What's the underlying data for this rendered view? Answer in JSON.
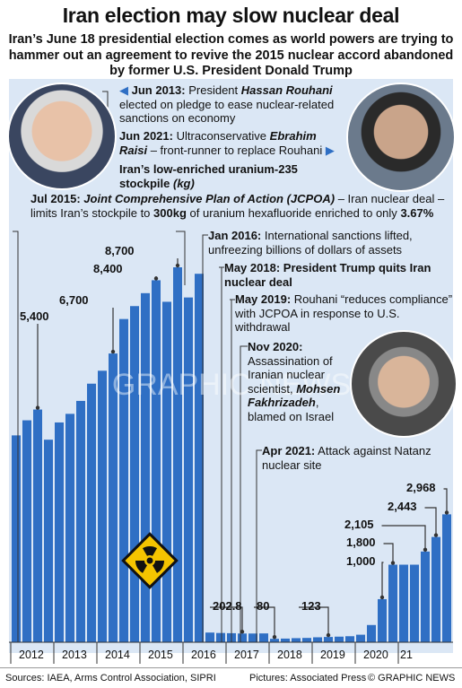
{
  "title": "Iran election may slow nuclear deal",
  "subtitle": "Iran’s June 18 presidential election comes as world powers are trying to hammer out an agreement to revive the 2015 nuclear accord abandoned by former U.S. President Donald Trump",
  "timeline": {
    "jun2013": {
      "date": "Jun 2013:",
      "pre": "President",
      "name": "Hassan Rouhani",
      "post": "elected on pledge to ease nuclear-related sanctions on economy"
    },
    "jun2021": {
      "date": "Jun 2021:",
      "pre": "Ultraconservative",
      "name": "Ebrahim Raisi",
      "post": "– front-runner to replace Rouhani"
    },
    "stockpile": {
      "label": "Iran’s low-enriched uranium-235 stockpile",
      "unit": "(kg)"
    },
    "jul2015": {
      "date": "Jul 2015:",
      "name": "Joint Comprehensive Plan of Action (JCPOA)",
      "text1": "– Iran nuclear deal – limits Iran’s stockpile to",
      "amount": "300kg",
      "text2": "of uranium hexafluoride enriched to only",
      "pct": "3.67%"
    },
    "jan2016": {
      "date": "Jan 2016:",
      "text": "International sanctions lifted, unfreezing billions of dollars of assets"
    },
    "may2018": {
      "date": "May 2018:",
      "text": "President Trump quits Iran nuclear deal"
    },
    "may2019": {
      "date": "May 2019:",
      "text": "Rouhani “reduces compliance” with JCPOA in response to U.S. withdrawal"
    },
    "nov2020": {
      "date": "Nov 2020:",
      "pre": "Assassination of Iranian nuclear scientist,",
      "name": "Mohsen Fakhrizadeh",
      "post": ", blamed on Israel"
    },
    "apr2021": {
      "date": "Apr 2021:",
      "text": "Attack against Natanz nuclear site"
    }
  },
  "photos": {
    "rouhani": "Hassan Rouhani portrait",
    "raisi": "Ebrahim Raisi portrait",
    "fakhrizadeh": "Mohsen Fakhrizadeh portrait"
  },
  "hazard_icon": "radiation-warning-icon",
  "watermark": "GRAPHIC NEWS",
  "chart_data": {
    "type": "bar",
    "title": "Iran’s low-enriched uranium-235 stockpile",
    "ylabel": "(kg)",
    "x_ticks": [
      "2012",
      "2013",
      "2014",
      "2015",
      "2016",
      "2017",
      "2018",
      "2019",
      "2020",
      "21"
    ],
    "values": [
      4800,
      5150,
      5400,
      4700,
      5100,
      5300,
      5600,
      6000,
      6300,
      6700,
      7500,
      7800,
      8100,
      8400,
      7900,
      8700,
      8000,
      8550,
      225,
      215,
      210,
      202.8,
      202.8,
      205,
      80,
      85,
      95,
      100,
      115,
      123,
      130,
      140,
      175,
      400,
      1000,
      1800,
      1800,
      1800,
      2105,
      2443,
      2968
    ],
    "callouts": [
      "5,400",
      "6,700",
      "8,400",
      "8,700",
      "202.8",
      "80",
      "123",
      "1,000",
      "1,800",
      "2,105",
      "2,443",
      "2,968"
    ],
    "colors": {
      "bar": "#2f6fc4",
      "panel": "#dbe7f5",
      "line": "#333333"
    }
  },
  "footer": {
    "sources": "Sources: IAEA, Arms Control Association, SIPRI",
    "pictures": "Pictures: Associated Press",
    "credit": "© GRAPHIC NEWS"
  }
}
